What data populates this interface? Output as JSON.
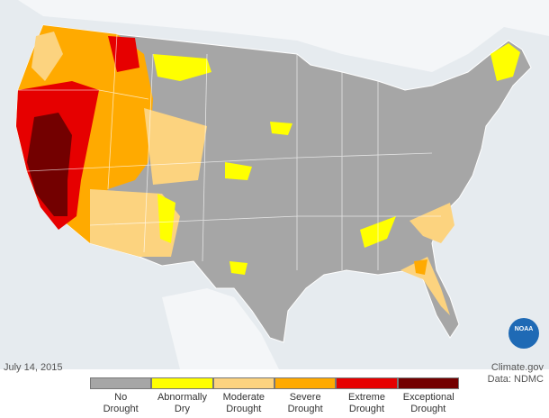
{
  "date": "July 14, 2015",
  "credit": {
    "source": "Climate.gov",
    "data": "Data: NDMC"
  },
  "logo": "NOAA",
  "legend": [
    {
      "label": "No Drought",
      "color": "#a6a6a6"
    },
    {
      "label": "Abnormally Dry",
      "color": "#ffff00"
    },
    {
      "label": "Moderate Drought",
      "color": "#fcd37f"
    },
    {
      "label": "Severe Drought",
      "color": "#ffaa00"
    },
    {
      "label": "Extreme Drought",
      "color": "#e60000"
    },
    {
      "label": "Exceptional Drought",
      "color": "#730000"
    }
  ]
}
